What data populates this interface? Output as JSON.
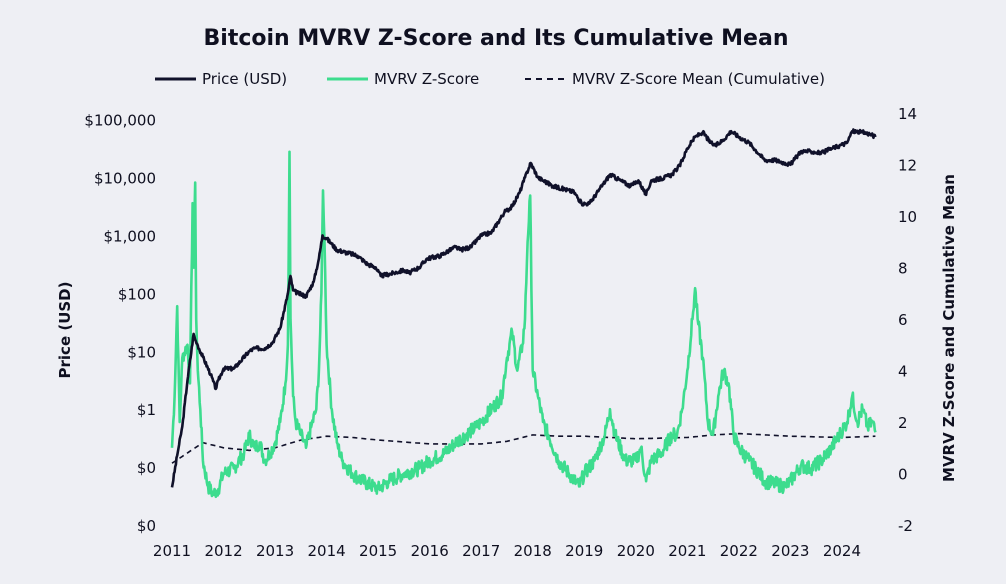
{
  "chart_data": {
    "type": "line",
    "title": "Bitcoin MVRV Z-Score and Its Cumulative Mean",
    "legend": [
      "Price (USD)",
      "MVRV Z-Score",
      "MVRV Z-Score Mean (Cumulative)"
    ],
    "legend_position": "top-center",
    "xlabel": "",
    "ylabel_left": "Price (USD)",
    "ylabel_right": "MVRV Z-Score and Cumulative Mean",
    "x_ticks": [
      "2011",
      "2012",
      "2013",
      "2014",
      "2015",
      "2016",
      "2017",
      "2018",
      "2019",
      "2020",
      "2021",
      "2022",
      "2023",
      "2024"
    ],
    "xlim": [
      2011.0,
      2024.7
    ],
    "y_left_ticks": [
      "$0",
      "$0",
      "$1",
      "$10",
      "$100",
      "$1,000",
      "$10,000",
      "$100,000"
    ],
    "y_left_tick_values_log10": [
      -2,
      -1,
      0,
      1,
      2,
      3,
      4,
      5
    ],
    "ylim_left_log10": [
      -2,
      5.2
    ],
    "y_right_ticks": [
      "-2",
      "0",
      "2",
      "4",
      "6",
      "8",
      "10",
      "12",
      "14"
    ],
    "ylim_right": [
      -2,
      14.2
    ],
    "colors": {
      "price": "#10112a",
      "zscore": "#3ddc8e",
      "mean": "#10112a"
    },
    "series": [
      {
        "name": "Price (USD)",
        "axis": "left",
        "x": [
          2011.0,
          2011.1,
          2011.2,
          2011.3,
          2011.42,
          2011.45,
          2011.5,
          2011.6,
          2011.75,
          2011.85,
          2011.9,
          2012.0,
          2012.2,
          2012.5,
          2012.6,
          2012.8,
          2012.95,
          2013.1,
          2013.25,
          2013.3,
          2013.35,
          2013.45,
          2013.6,
          2013.75,
          2013.85,
          2013.92,
          2014.0,
          2014.1,
          2014.2,
          2014.4,
          2014.6,
          2014.8,
          2014.95,
          2015.05,
          2015.3,
          2015.5,
          2015.6,
          2015.8,
          2015.95,
          2016.2,
          2016.5,
          2016.6,
          2016.8,
          2017.0,
          2017.2,
          2017.45,
          2017.6,
          2017.75,
          2017.85,
          2017.96,
          2018.1,
          2018.2,
          2018.4,
          2018.6,
          2018.8,
          2018.95,
          2019.1,
          2019.3,
          2019.5,
          2019.7,
          2019.9,
          2020.05,
          2020.2,
          2020.3,
          2020.5,
          2020.7,
          2020.85,
          2021.0,
          2021.15,
          2021.3,
          2021.45,
          2021.55,
          2021.7,
          2021.85,
          2022.0,
          2022.2,
          2022.4,
          2022.5,
          2022.7,
          2022.9,
          2023.0,
          2023.2,
          2023.4,
          2023.6,
          2023.8,
          2023.95,
          2024.1,
          2024.2,
          2024.4,
          2024.55,
          2024.65
        ],
        "values_log10": [
          -1.35,
          -0.8,
          -0.3,
          0.5,
          1.3,
          1.2,
          1.1,
          0.9,
          0.6,
          0.35,
          0.5,
          0.7,
          0.7,
          1.0,
          1.05,
          1.05,
          1.15,
          1.4,
          2.0,
          2.3,
          2.05,
          2.0,
          1.95,
          2.2,
          2.6,
          3.0,
          2.95,
          2.85,
          2.75,
          2.7,
          2.65,
          2.5,
          2.45,
          2.3,
          2.35,
          2.4,
          2.35,
          2.45,
          2.6,
          2.65,
          2.8,
          2.75,
          2.8,
          3.0,
          3.05,
          3.4,
          3.5,
          3.75,
          4.0,
          4.25,
          4.0,
          3.95,
          3.85,
          3.8,
          3.75,
          3.55,
          3.55,
          3.8,
          4.05,
          3.95,
          3.85,
          3.95,
          3.7,
          3.95,
          3.98,
          4.05,
          4.2,
          4.5,
          4.7,
          4.78,
          4.6,
          4.55,
          4.65,
          4.8,
          4.7,
          4.6,
          4.4,
          4.3,
          4.3,
          4.25,
          4.22,
          4.45,
          4.45,
          4.42,
          4.5,
          4.55,
          4.6,
          4.8,
          4.78,
          4.75,
          4.7
        ]
      },
      {
        "name": "MVRV Z-Score",
        "axis": "right",
        "x": [
          2011.0,
          2011.05,
          2011.1,
          2011.15,
          2011.2,
          2011.3,
          2011.35,
          2011.4,
          2011.42,
          2011.45,
          2011.47,
          2011.5,
          2011.55,
          2011.6,
          2011.7,
          2011.8,
          2011.9,
          2012.0,
          2012.2,
          2012.4,
          2012.5,
          2012.6,
          2012.7,
          2012.8,
          2012.9,
          2013.0,
          2013.1,
          2013.2,
          2013.25,
          2013.28,
          2013.3,
          2013.35,
          2013.4,
          2013.5,
          2013.6,
          2013.7,
          2013.8,
          2013.85,
          2013.9,
          2013.93,
          2013.96,
          2014.0,
          2014.1,
          2014.2,
          2014.3,
          2014.5,
          2014.7,
          2014.9,
          2015.0,
          2015.2,
          2015.5,
          2015.8,
          2016.0,
          2016.3,
          2016.5,
          2016.7,
          2016.9,
          2017.0,
          2017.2,
          2017.4,
          2017.5,
          2017.6,
          2017.7,
          2017.8,
          2017.85,
          2017.9,
          2017.95,
          2018.0,
          2018.1,
          2018.2,
          2018.3,
          2018.5,
          2018.7,
          2018.9,
          2019.0,
          2019.2,
          2019.4,
          2019.5,
          2019.6,
          2019.8,
          2020.0,
          2020.1,
          2020.2,
          2020.3,
          2020.5,
          2020.7,
          2020.8,
          2020.9,
          2021.0,
          2021.1,
          2021.15,
          2021.2,
          2021.3,
          2021.4,
          2021.5,
          2021.6,
          2021.7,
          2021.8,
          2021.9,
          2022.0,
          2022.2,
          2022.4,
          2022.5,
          2022.7,
          2022.9,
          2023.0,
          2023.2,
          2023.4,
          2023.6,
          2023.8,
          2023.95,
          2024.1,
          2024.2,
          2024.3,
          2024.4,
          2024.5,
          2024.6,
          2024.65
        ],
        "values": [
          1.0,
          3.0,
          6.5,
          2.0,
          4.5,
          5.0,
          3.5,
          10.5,
          8.0,
          11.3,
          6.0,
          4.0,
          2.5,
          0.5,
          -0.5,
          -0.8,
          -0.6,
          0.0,
          0.2,
          0.8,
          1.5,
          1.0,
          1.2,
          0.5,
          0.8,
          1.2,
          2.0,
          3.5,
          5.0,
          12.5,
          6.0,
          3.0,
          2.0,
          1.5,
          1.0,
          1.8,
          2.5,
          4.0,
          7.0,
          11.0,
          9.0,
          5.0,
          2.5,
          1.2,
          0.5,
          0.0,
          -0.3,
          -0.5,
          -0.6,
          -0.3,
          0.0,
          0.2,
          0.5,
          0.8,
          1.2,
          1.5,
          1.8,
          2.0,
          2.5,
          3.0,
          4.5,
          5.5,
          4.0,
          5.0,
          6.0,
          9.0,
          10.8,
          4.0,
          3.0,
          2.0,
          1.5,
          0.5,
          0.0,
          -0.5,
          0.0,
          0.5,
          1.5,
          2.5,
          1.5,
          0.5,
          0.5,
          1.0,
          -0.3,
          0.5,
          0.8,
          1.5,
          1.5,
          2.5,
          4.0,
          6.0,
          7.2,
          6.0,
          4.5,
          2.0,
          1.5,
          3.0,
          4.0,
          3.5,
          1.5,
          1.0,
          0.5,
          0.0,
          -0.3,
          -0.4,
          -0.5,
          -0.3,
          0.3,
          0.2,
          0.5,
          1.0,
          1.5,
          2.0,
          3.0,
          2.0,
          2.5,
          1.8,
          2.0,
          1.6
        ]
      },
      {
        "name": "MVRV Z-Score Mean (Cumulative)",
        "axis": "right",
        "x": [
          2011.0,
          2011.3,
          2011.6,
          2012.0,
          2012.5,
          2013.0,
          2013.5,
          2014.0,
          2014.5,
          2015.0,
          2016.0,
          2017.0,
          2017.5,
          2018.0,
          2018.5,
          2019.0,
          2020.0,
          2021.0,
          2021.5,
          2022.0,
          2023.0,
          2024.0,
          2024.65
        ],
        "values": [
          0.4,
          0.8,
          1.2,
          1.0,
          0.9,
          1.0,
          1.3,
          1.45,
          1.4,
          1.3,
          1.15,
          1.15,
          1.25,
          1.5,
          1.45,
          1.45,
          1.35,
          1.4,
          1.5,
          1.55,
          1.45,
          1.4,
          1.45
        ]
      }
    ]
  }
}
